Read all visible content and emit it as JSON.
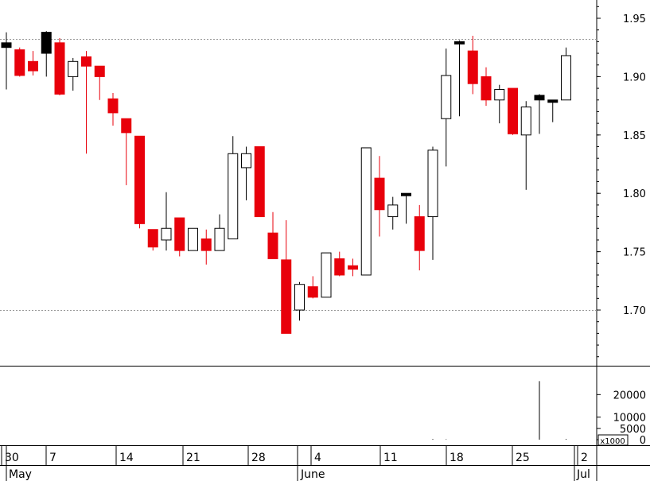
{
  "chart_data": {
    "type": "candlestick",
    "title": "",
    "xlabel": "",
    "ylabel": "",
    "ylim": [
      1.65,
      1.97
    ],
    "yticks": [
      "1.95",
      "1.90",
      "1.85",
      "1.80",
      "1.75",
      "1.70"
    ],
    "reference_lines": [
      1.932,
      1.7
    ],
    "candles": [
      {
        "o": 1.925,
        "h": 1.938,
        "l": 1.889,
        "c": 1.929,
        "color": "black"
      },
      {
        "o": 1.923,
        "h": 1.925,
        "l": 1.9,
        "c": 1.901,
        "color": "red"
      },
      {
        "o": 1.913,
        "h": 1.922,
        "l": 1.901,
        "c": 1.905,
        "color": "red"
      },
      {
        "o": 1.92,
        "h": 1.939,
        "l": 1.9,
        "c": 1.938,
        "color": "black"
      },
      {
        "o": 1.929,
        "h": 1.933,
        "l": 1.884,
        "c": 1.885,
        "color": "red"
      },
      {
        "o": 1.9,
        "h": 1.916,
        "l": 1.888,
        "c": 1.913,
        "color": "white"
      },
      {
        "o": 1.917,
        "h": 1.922,
        "l": 1.834,
        "c": 1.909,
        "color": "red"
      },
      {
        "o": 1.909,
        "h": 1.909,
        "l": 1.88,
        "c": 1.9,
        "color": "red"
      },
      {
        "o": 1.881,
        "h": 1.886,
        "l": 1.858,
        "c": 1.869,
        "color": "red"
      },
      {
        "o": 1.864,
        "h": 1.864,
        "l": 1.807,
        "c": 1.852,
        "color": "red"
      },
      {
        "o": 1.849,
        "h": 1.849,
        "l": 1.77,
        "c": 1.774,
        "color": "red"
      },
      {
        "o": 1.769,
        "h": 1.769,
        "l": 1.751,
        "c": 1.754,
        "color": "red"
      },
      {
        "o": 1.76,
        "h": 1.801,
        "l": 1.751,
        "c": 1.77,
        "color": "white"
      },
      {
        "o": 1.779,
        "h": 1.779,
        "l": 1.746,
        "c": 1.751,
        "color": "red"
      },
      {
        "o": 1.751,
        "h": 1.77,
        "l": 1.751,
        "c": 1.77,
        "color": "white"
      },
      {
        "o": 1.761,
        "h": 1.769,
        "l": 1.739,
        "c": 1.751,
        "color": "red"
      },
      {
        "o": 1.751,
        "h": 1.782,
        "l": 1.751,
        "c": 1.77,
        "color": "white"
      },
      {
        "o": 1.761,
        "h": 1.849,
        "l": 1.761,
        "c": 1.834,
        "color": "white"
      },
      {
        "o": 1.822,
        "h": 1.84,
        "l": 1.794,
        "c": 1.834,
        "color": "white"
      },
      {
        "o": 1.84,
        "h": 1.84,
        "l": 1.78,
        "c": 1.78,
        "color": "red"
      },
      {
        "o": 1.766,
        "h": 1.784,
        "l": 1.744,
        "c": 1.744,
        "color": "red"
      },
      {
        "o": 1.743,
        "h": 1.777,
        "l": 1.68,
        "c": 1.68,
        "color": "red"
      },
      {
        "o": 1.7,
        "h": 1.724,
        "l": 1.691,
        "c": 1.722,
        "color": "white"
      },
      {
        "o": 1.72,
        "h": 1.729,
        "l": 1.71,
        "c": 1.711,
        "color": "red"
      },
      {
        "o": 1.711,
        "h": 1.749,
        "l": 1.711,
        "c": 1.749,
        "color": "white"
      },
      {
        "o": 1.744,
        "h": 1.75,
        "l": 1.729,
        "c": 1.73,
        "color": "red"
      },
      {
        "o": 1.735,
        "h": 1.744,
        "l": 1.729,
        "c": 1.738,
        "color": "red"
      },
      {
        "o": 1.73,
        "h": 1.839,
        "l": 1.73,
        "c": 1.839,
        "color": "white"
      },
      {
        "o": 1.813,
        "h": 1.832,
        "l": 1.763,
        "c": 1.786,
        "color": "red"
      },
      {
        "o": 1.78,
        "h": 1.797,
        "l": 1.769,
        "c": 1.79,
        "color": "white"
      },
      {
        "o": 1.8,
        "h": 1.8,
        "l": 1.774,
        "c": 1.8,
        "color": "black"
      },
      {
        "o": 1.78,
        "h": 1.79,
        "l": 1.734,
        "c": 1.751,
        "color": "red"
      },
      {
        "o": 1.78,
        "h": 1.84,
        "l": 1.743,
        "c": 1.837,
        "color": "white"
      },
      {
        "o": 1.864,
        "h": 1.924,
        "l": 1.823,
        "c": 1.901,
        "color": "white"
      },
      {
        "o": 1.93,
        "h": 1.931,
        "l": 1.866,
        "c": 1.93,
        "color": "black"
      },
      {
        "o": 1.922,
        "h": 1.935,
        "l": 1.885,
        "c": 1.894,
        "color": "red"
      },
      {
        "o": 1.9,
        "h": 1.908,
        "l": 1.875,
        "c": 1.88,
        "color": "red"
      },
      {
        "o": 1.88,
        "h": 1.893,
        "l": 1.86,
        "c": 1.889,
        "color": "white"
      },
      {
        "o": 1.89,
        "h": 1.89,
        "l": 1.85,
        "c": 1.851,
        "color": "red"
      },
      {
        "o": 1.85,
        "h": 1.879,
        "l": 1.803,
        "c": 1.874,
        "color": "white"
      },
      {
        "o": 1.88,
        "h": 1.885,
        "l": 1.851,
        "c": 1.884,
        "color": "black"
      },
      {
        "o": 1.88,
        "h": 1.88,
        "l": 1.861,
        "c": 1.88,
        "color": "black"
      },
      {
        "o": 1.88,
        "h": 1.925,
        "l": 1.88,
        "c": 1.918,
        "color": "white"
      }
    ],
    "volume": {
      "values": [
        0,
        0,
        0,
        0,
        0,
        0,
        0,
        0,
        0,
        0,
        0,
        0,
        0,
        0,
        0,
        0,
        0,
        0,
        0,
        0,
        0,
        0,
        0,
        0,
        0,
        0,
        0,
        0,
        0,
        0,
        0,
        0,
        300,
        200,
        0,
        0,
        0,
        0,
        0,
        0,
        26000,
        0,
        300
      ],
      "ylim": [
        0,
        28000
      ],
      "yticks": [
        "20000",
        "10000",
        "5000",
        "0"
      ],
      "unit_label": "x1000"
    },
    "x_axis": {
      "ticks": [
        "30",
        "7",
        "14",
        "21",
        "28",
        "4",
        "11",
        "18",
        "25",
        "2"
      ],
      "months": [
        "May",
        "June",
        "Jul"
      ]
    },
    "colors": {
      "down": "#e8000b",
      "up_fill": "#ffffff",
      "doji": "#000000",
      "grid": "#9a9a9a"
    }
  }
}
